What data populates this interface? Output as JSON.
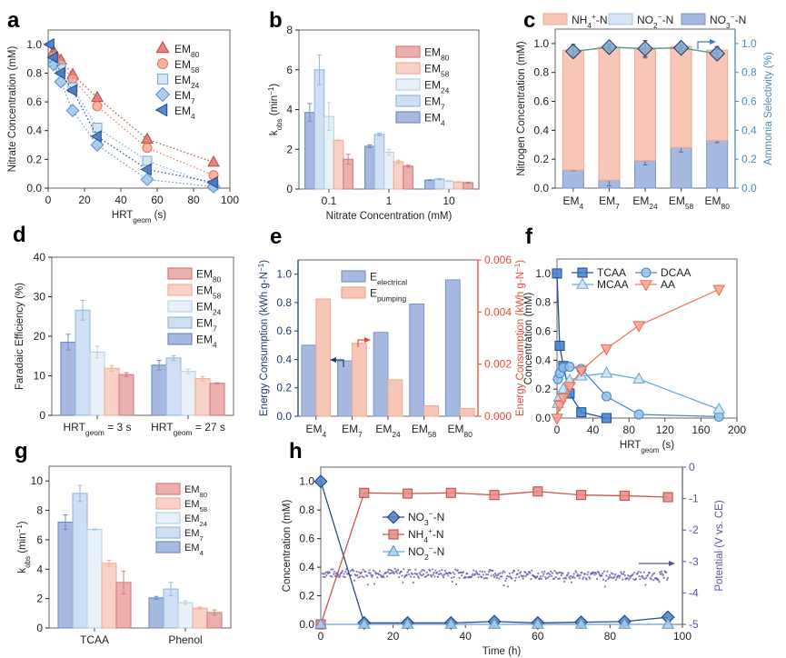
{
  "colors": {
    "em4": "#a6b9e0",
    "em4_stroke": "#6f8cc8",
    "em7": "#cfe0f4",
    "em7_stroke": "#94b8e0",
    "em24": "#e8f1f8",
    "em24_stroke": "#b7d0e6",
    "em58": "#f9d2c6",
    "em58_stroke": "#f2ae98",
    "em80": "#ebb0ae",
    "em80_stroke": "#d27d7a"
  },
  "chart_data": [
    {
      "panel": "a",
      "type": "scatter",
      "xlabel": "HRT_{geom} (s)",
      "ylabel": "Nitrate Concentration (mM)",
      "xlim": [
        0,
        100
      ],
      "ylim": [
        0,
        1.1
      ],
      "xticks": [
        "0",
        "20",
        "40",
        "60",
        "80",
        "100"
      ],
      "yticks": [
        "0.0",
        "0.2",
        "0.4",
        "0.6",
        "0.8",
        "1.0"
      ],
      "series": [
        {
          "name": "EM_{80}",
          "marker": "triangle-up",
          "color": "#e0716b",
          "stroke": "#b84c48",
          "x": [
            3,
            7,
            13.5,
            27,
            54.5,
            91
          ],
          "y": [
            0.95,
            0.89,
            0.79,
            0.63,
            0.34,
            0.18
          ]
        },
        {
          "name": "EM_{58}",
          "marker": "circle",
          "color": "#f5a890",
          "stroke": "#e5775c",
          "x": [
            3,
            7,
            13.5,
            27,
            54.5,
            91
          ],
          "y": [
            0.92,
            0.86,
            0.76,
            0.57,
            0.28,
            0.09
          ]
        },
        {
          "name": "EM_{24}",
          "marker": "square",
          "color": "#cfe3f2",
          "stroke": "#7eaed6",
          "x": [
            3,
            7,
            13.5,
            27,
            54.5,
            91
          ],
          "y": [
            0.88,
            0.83,
            0.7,
            0.42,
            0.19,
            0.02
          ]
        },
        {
          "name": "EM_{7}",
          "marker": "diamond",
          "color": "#9fc4ea",
          "stroke": "#5f95cf",
          "x": [
            3,
            7,
            13.5,
            27,
            54.5,
            91
          ],
          "y": [
            0.86,
            0.74,
            0.54,
            0.3,
            0.06,
            0.01
          ]
        },
        {
          "name": "EM_{4}",
          "marker": "triangle-left",
          "color": "#3d72c0",
          "stroke": "#24508f",
          "x": [
            1,
            3,
            7,
            13.5,
            27,
            54.5,
            91
          ],
          "y": [
            1.0,
            0.91,
            0.8,
            0.68,
            0.36,
            0.13,
            0.04
          ]
        }
      ]
    },
    {
      "panel": "b",
      "type": "bar",
      "xlabel": "Nitrate Concentration (mM)",
      "ylabel": "k_{obs} (min^{−1})",
      "ylim": [
        0,
        8
      ],
      "yticks": [
        "0",
        "2",
        "4",
        "6",
        "8"
      ],
      "categories": [
        "0.1",
        "1",
        "10"
      ],
      "series": [
        {
          "name": "EM_{4}",
          "key": "em4",
          "values": [
            3.85,
            2.15,
            0.45
          ],
          "errors": [
            0.45,
            0.07,
            0.02
          ]
        },
        {
          "name": "EM_{7}",
          "key": "em7",
          "values": [
            6.0,
            2.75,
            0.5
          ],
          "errors": [
            0.75,
            0.07,
            0.03
          ]
        },
        {
          "name": "EM_{24}",
          "key": "em24",
          "values": [
            3.65,
            1.85,
            0.4
          ],
          "errors": [
            0.7,
            0.15,
            0.03
          ]
        },
        {
          "name": "EM_{58}",
          "key": "em58",
          "values": [
            2.45,
            1.38,
            0.35
          ],
          "errors": [
            0.02,
            0.08,
            0.02
          ]
        },
        {
          "name": "EM_{80}",
          "key": "em80",
          "values": [
            1.5,
            1.15,
            0.32
          ],
          "errors": [
            0.25,
            0.05,
            0.03
          ]
        }
      ]
    },
    {
      "panel": "c",
      "type": "bar",
      "stacked": true,
      "ylabel": "Nitrogen Concentration (mM)",
      "y2label": "Ammonia Selectivity (%)",
      "ylim": [
        0,
        1.1
      ],
      "y2lim": [
        0,
        1.1
      ],
      "yticks": [
        "0.0",
        "0.2",
        "0.4",
        "0.6",
        "0.8",
        "1.0"
      ],
      "y2ticks": [
        "0.0",
        "0.2",
        "0.4",
        "0.6",
        "0.8",
        "1.0"
      ],
      "categories": [
        "EM_{4}",
        "EM_{7}",
        "EM_{24}",
        "EM_{58}",
        "EM_{80}"
      ],
      "series": [
        {
          "name": "NO_{3}^{−}-N",
          "values": [
            0.125,
            0.055,
            0.19,
            0.28,
            0.33
          ],
          "errors": [
            0.005,
            0.04,
            0.03,
            0.03,
            0.015
          ],
          "color": "#a6b9e0",
          "stroke": "#7b93c8"
        },
        {
          "name": "NO_{2}^{−}-N",
          "values": [
            0,
            0,
            0,
            0,
            0
          ],
          "color": "#d6e6f5",
          "stroke": "#a3c3e3"
        },
        {
          "name": "NH_{4}^{+}-N",
          "values": [
            0.83,
            0.92,
            0.77,
            0.7,
            0.625
          ],
          "errors": [
            0.04,
            0.01,
            0.06,
            0.01,
            0.025
          ],
          "color": "#f7c6b6",
          "stroke": "#f0a890"
        }
      ],
      "legend_order": [
        2,
        1,
        0
      ],
      "selectivity": {
        "name": "Ammonia Selectivity",
        "values": [
          0.945,
          0.975,
          0.965,
          0.97,
          0.93
        ],
        "errors": [
          0.04,
          0.02,
          0.055,
          0.02,
          0.03
        ]
      }
    },
    {
      "panel": "d",
      "type": "bar",
      "ylabel": "Faradaic Efficiency (%)",
      "ylim": [
        0,
        40
      ],
      "yticks": [
        "0",
        "10",
        "20",
        "30",
        "40"
      ],
      "categories": [
        "HRT_{geom} = 3 s",
        "HRT_{geom} = 27 s"
      ],
      "series": [
        {
          "name": "EM_{4}",
          "key": "em4",
          "values": [
            18.5,
            12.7
          ],
          "errors": [
            2.0,
            1.2
          ]
        },
        {
          "name": "EM_{7}",
          "key": "em7",
          "values": [
            26.6,
            14.5
          ],
          "errors": [
            2.5,
            0.6
          ]
        },
        {
          "name": "EM_{24}",
          "key": "em24",
          "values": [
            16.0,
            11.1
          ],
          "errors": [
            1.5,
            0.6
          ]
        },
        {
          "name": "EM_{58}",
          "key": "em58",
          "values": [
            11.9,
            9.3
          ],
          "errors": [
            0.7,
            0.5
          ]
        },
        {
          "name": "EM_{80}",
          "key": "em80",
          "values": [
            10.3,
            8.1
          ],
          "errors": [
            0.5,
            0.15
          ]
        }
      ]
    },
    {
      "panel": "e",
      "type": "bar",
      "ylabel": "Energy Consumption (kWh g-N^{−1})",
      "y2label": "Energy Consumption (kWh g-N^{−1})",
      "ylim": [
        0,
        1.1
      ],
      "y2lim": [
        0,
        0.006
      ],
      "yticks": [
        "0.0",
        "0.2",
        "0.4",
        "0.6",
        "0.8",
        "1.0"
      ],
      "y2ticks": [
        "0.000",
        "0.002",
        "0.004",
        "0.006"
      ],
      "categories": [
        "EM_{4}",
        "EM_{7}",
        "EM_{24}",
        "EM_{58}",
        "EM_{80}"
      ],
      "series": [
        {
          "name": "E_{electrical}",
          "axis": "left",
          "values": [
            0.5,
            0.39,
            0.59,
            0.79,
            0.96
          ],
          "color": "#a6b9e0",
          "stroke": "#7b93c8"
        },
        {
          "name": "E_{pumping}",
          "axis": "right",
          "values": [
            0.0045,
            0.0028,
            0.0014,
            0.0004,
            0.0003
          ],
          "color": "#f7c6b6",
          "stroke": "#f0a890"
        }
      ],
      "left_color": "#1f3a73",
      "right_color": "#ea4a32"
    },
    {
      "panel": "f",
      "type": "line",
      "xlabel": "HRT_{geom} (s)",
      "ylabel": "Concentration (mM)",
      "xlim": [
        0,
        200
      ],
      "ylim": [
        0,
        1.1
      ],
      "xticks": [
        "0",
        "40",
        "80",
        "120",
        "160",
        "200"
      ],
      "yticks": [
        "0.0",
        "0.2",
        "0.4",
        "0.6",
        "0.8",
        "1.0"
      ],
      "series": [
        {
          "name": "TCAA",
          "marker": "square",
          "color": "#3f7fd0",
          "stroke": "#23508f",
          "line": "#23508f",
          "x": [
            0,
            3,
            7,
            14,
            27,
            55
          ],
          "y": [
            1.0,
            0.5,
            0.36,
            0.17,
            0.04,
            0.0
          ]
        },
        {
          "name": "DCAA",
          "marker": "circle",
          "color": "#93c1ea",
          "stroke": "#4a86c6",
          "line": "#4a86c6",
          "x": [
            1,
            3,
            7,
            14,
            27,
            55,
            91,
            180
          ],
          "y": [
            0.27,
            0.31,
            0.35,
            0.355,
            0.34,
            0.15,
            0.025,
            0.01
          ]
        },
        {
          "name": "MCAA",
          "marker": "triangle-up",
          "color": "#cfe4f4",
          "stroke": "#6aaad8",
          "line": "#6aaad8",
          "x": [
            1,
            3,
            7,
            14,
            27,
            55,
            91,
            180
          ],
          "y": [
            0.1,
            0.15,
            0.2,
            0.26,
            0.29,
            0.31,
            0.27,
            0.06
          ]
        },
        {
          "name": "AA",
          "marker": "triangle-down",
          "color": "#f9a58f",
          "stroke": "#ee6b4f",
          "line": "#f27a5f",
          "x": [
            0,
            3,
            7,
            14,
            27,
            55,
            91,
            180
          ],
          "y": [
            0.0,
            0.09,
            0.14,
            0.22,
            0.33,
            0.48,
            0.64,
            0.89
          ]
        }
      ]
    },
    {
      "panel": "g",
      "type": "bar",
      "ylabel": "k_{obs} (min^{−1})",
      "ylim": [
        0,
        11
      ],
      "yticks": [
        "0",
        "2",
        "4",
        "6",
        "8",
        "10"
      ],
      "categories": [
        "TCAA",
        "Phenol"
      ],
      "series": [
        {
          "name": "EM_{4}",
          "key": "em4",
          "values": [
            7.2,
            2.05
          ],
          "errors": [
            0.5,
            0.1
          ]
        },
        {
          "name": "EM_{7}",
          "key": "em7",
          "values": [
            9.15,
            2.65
          ],
          "errors": [
            0.55,
            0.45
          ]
        },
        {
          "name": "EM_{24}",
          "key": "em24",
          "values": [
            6.7,
            1.72
          ],
          "errors": [
            0.05,
            0.12
          ]
        },
        {
          "name": "EM_{58}",
          "key": "em58",
          "values": [
            4.4,
            1.35
          ],
          "errors": [
            0.2,
            0.07
          ]
        },
        {
          "name": "EM_{80}",
          "key": "em80",
          "values": [
            3.1,
            1.05
          ],
          "errors": [
            0.78,
            0.18
          ]
        }
      ]
    },
    {
      "panel": "h",
      "type": "line",
      "xlabel": "Time (h)",
      "ylabel": "Concentration (mM)",
      "y2label": "Potential (V vs. CE)",
      "xlim": [
        0,
        100
      ],
      "ylim": [
        0,
        1.1
      ],
      "y2lim": [
        -5,
        0
      ],
      "xticks": [
        "0",
        "20",
        "40",
        "60",
        "80",
        "100"
      ],
      "yticks": [
        "0.0",
        "0.2",
        "0.4",
        "0.6",
        "0.8",
        "1.0"
      ],
      "y2ticks": [
        "-5",
        "-4",
        "-3",
        "-2",
        "-1",
        "0"
      ],
      "series": [
        {
          "name": "NO_{3}^{−}-N",
          "marker": "diamond",
          "color": "#4a82c6",
          "stroke": "#1f3f7a",
          "line": "#2d4c8a",
          "x": [
            0,
            12,
            24,
            36,
            48,
            60,
            72,
            84,
            96
          ],
          "y": [
            1.0,
            0.01,
            0.01,
            0.01,
            0.02,
            0.01,
            0.015,
            0.02,
            0.05
          ]
        },
        {
          "name": "NH_{4}^{+}-N",
          "marker": "square",
          "color": "#e88a85",
          "stroke": "#c4504a",
          "line": "#d0524a",
          "x": [
            0,
            12,
            24,
            36,
            48,
            60,
            72,
            84,
            96
          ],
          "y": [
            0.0,
            0.92,
            0.915,
            0.92,
            0.905,
            0.93,
            0.905,
            0.9,
            0.89
          ]
        },
        {
          "name": "NO_{2}^{−}-N",
          "marker": "triangle-up",
          "color": "#a9d0ef",
          "stroke": "#5c96cc",
          "line": "#6aa2d6",
          "x": [
            0,
            12,
            24,
            36,
            48,
            60,
            72,
            84,
            96
          ],
          "y": [
            0,
            0,
            0,
            0,
            0,
            0,
            0,
            0,
            0
          ]
        }
      ],
      "potential": {
        "name": "Potential",
        "color": "#5b4ea6",
        "time": [
          0,
          12,
          24,
          36,
          48,
          60,
          72,
          84,
          96
        ],
        "values": [
          -3.38,
          -3.37,
          -3.37,
          -3.38,
          -3.4,
          -3.43,
          -3.44,
          -3.45,
          -3.45
        ]
      }
    }
  ]
}
